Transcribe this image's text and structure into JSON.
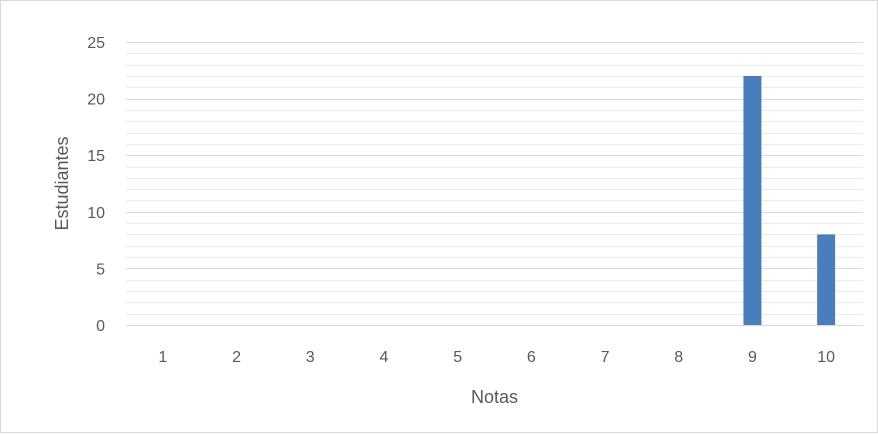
{
  "chart_data": {
    "type": "bar",
    "title": "",
    "xlabel": "Notas",
    "ylabel": "Estudiantes",
    "categories": [
      "1",
      "2",
      "3",
      "4",
      "5",
      "6",
      "7",
      "8",
      "9",
      "10"
    ],
    "values": [
      0,
      0,
      0,
      0,
      0,
      0,
      0,
      0,
      22,
      8
    ],
    "ylim": [
      0,
      25
    ],
    "yticks": [
      0,
      5,
      10,
      15,
      20,
      25
    ],
    "minor_grid_step": 1,
    "grid": true,
    "legend": "none",
    "bar_color": "#4a7ebb",
    "grid_color": "#d9d9d9"
  }
}
